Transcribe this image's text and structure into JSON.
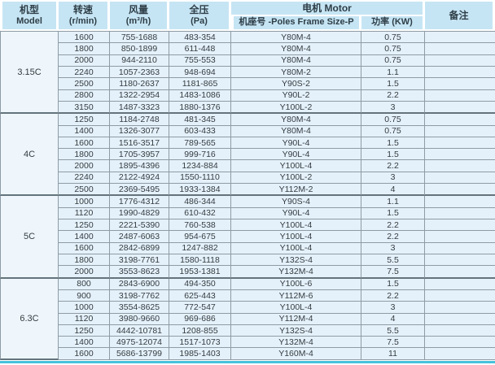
{
  "colors": {
    "page_bg": "#ffffff",
    "header_bg": "#c6e5f4",
    "header_text": "#2e3e47",
    "row_bg": "#e5f1fa",
    "model_bg": "#eef6fb",
    "body_text": "#333c41",
    "border": "#8e9ba5",
    "group_border": "#64737c",
    "accent_line": "#45c2dc"
  },
  "table": {
    "header": {
      "model": [
        "机型",
        "Model"
      ],
      "speed": [
        "转速",
        "(r/min)"
      ],
      "airflow": [
        "风量",
        "(m³/h)"
      ],
      "pressure": [
        "全压",
        "(Pa)"
      ],
      "motor": "电机 Motor",
      "frame": "机座号 -Poles Frame Size-P",
      "power": "功率 (KW)",
      "remarks": "备注"
    },
    "groups": [
      {
        "model": "3.15C",
        "rows": [
          {
            "speed": "1600",
            "airflow": "755-1688",
            "pressure": "483-354",
            "frame": "Y80M-4",
            "power": "0.75",
            "remark": ""
          },
          {
            "speed": "1800",
            "airflow": "850-1899",
            "pressure": "611-448",
            "frame": "Y80M-4",
            "power": "0.75",
            "remark": ""
          },
          {
            "speed": "2000",
            "airflow": "944-2110",
            "pressure": "755-553",
            "frame": "Y80M-4",
            "power": "0.75",
            "remark": ""
          },
          {
            "speed": "2240",
            "airflow": "1057-2363",
            "pressure": "948-694",
            "frame": "Y80M-2",
            "power": "1.1",
            "remark": ""
          },
          {
            "speed": "2500",
            "airflow": "1180-2637",
            "pressure": "1181-865",
            "frame": "Y90S-2",
            "power": "1.5",
            "remark": ""
          },
          {
            "speed": "2800",
            "airflow": "1322-2954",
            "pressure": "1483-1086",
            "frame": "Y90L-2",
            "power": "2.2",
            "remark": ""
          },
          {
            "speed": "3150",
            "airflow": "1487-3323",
            "pressure": "1880-1376",
            "frame": "Y100L-2",
            "power": "3",
            "remark": ""
          }
        ]
      },
      {
        "model": "4C",
        "rows": [
          {
            "speed": "1250",
            "airflow": "1184-2748",
            "pressure": "481-345",
            "frame": "Y80M-4",
            "power": "0.75",
            "remark": ""
          },
          {
            "speed": "1400",
            "airflow": "1326-3077",
            "pressure": "603-433",
            "frame": "Y80M-4",
            "power": "0.75",
            "remark": ""
          },
          {
            "speed": "1600",
            "airflow": "1516-3517",
            "pressure": "789-565",
            "frame": "Y90L-4",
            "power": "1.5",
            "remark": ""
          },
          {
            "speed": "1800",
            "airflow": "1705-3957",
            "pressure": "999-716",
            "frame": "Y90L-4",
            "power": "1.5",
            "remark": ""
          },
          {
            "speed": "2000",
            "airflow": "1895-4396",
            "pressure": "1234-884",
            "frame": "Y100L-4",
            "power": "2.2",
            "remark": ""
          },
          {
            "speed": "2240",
            "airflow": "2122-4924",
            "pressure": "1550-1110",
            "frame": "Y100L-2",
            "power": "3",
            "remark": ""
          },
          {
            "speed": "2500",
            "airflow": "2369-5495",
            "pressure": "1933-1384",
            "frame": "Y112M-2",
            "power": "4",
            "remark": ""
          }
        ]
      },
      {
        "model": "5C",
        "rows": [
          {
            "speed": "1000",
            "airflow": "1776-4312",
            "pressure": "486-344",
            "frame": "Y90S-4",
            "power": "1.1",
            "remark": ""
          },
          {
            "speed": "1120",
            "airflow": "1990-4829",
            "pressure": "610-432",
            "frame": "Y90L-4",
            "power": "1.5",
            "remark": ""
          },
          {
            "speed": "1250",
            "airflow": "2221-5390",
            "pressure": "760-538",
            "frame": "Y100L-4",
            "power": "2.2",
            "remark": ""
          },
          {
            "speed": "1400",
            "airflow": "2487-6063",
            "pressure": "954-675",
            "frame": "Y100L-4",
            "power": "2.2",
            "remark": ""
          },
          {
            "speed": "1600",
            "airflow": "2842-6899",
            "pressure": "1247-882",
            "frame": "Y100L-4",
            "power": "3",
            "remark": ""
          },
          {
            "speed": "1800",
            "airflow": "3198-7761",
            "pressure": "1580-1118",
            "frame": "Y132S-4",
            "power": "5.5",
            "remark": ""
          },
          {
            "speed": "2000",
            "airflow": "3553-8623",
            "pressure": "1953-1381",
            "frame": "Y132M-4",
            "power": "7.5",
            "remark": ""
          }
        ]
      },
      {
        "model": "6.3C",
        "rows": [
          {
            "speed": "800",
            "airflow": "2843-6900",
            "pressure": "494-350",
            "frame": "Y100L-6",
            "power": "1.5",
            "remark": ""
          },
          {
            "speed": "900",
            "airflow": "3198-7762",
            "pressure": "625-443",
            "frame": "Y112M-6",
            "power": "2.2",
            "remark": ""
          },
          {
            "speed": "1000",
            "airflow": "3554-8625",
            "pressure": "772-547",
            "frame": "Y100L-4",
            "power": "3",
            "remark": ""
          },
          {
            "speed": "1120",
            "airflow": "3980-9660",
            "pressure": "969-686",
            "frame": "Y112M-4",
            "power": "4",
            "remark": ""
          },
          {
            "speed": "1250",
            "airflow": "4442-10781",
            "pressure": "1208-855",
            "frame": "Y132S-4",
            "power": "5.5",
            "remark": ""
          },
          {
            "speed": "1400",
            "airflow": "4975-12074",
            "pressure": "1517-1073",
            "frame": "Y132M-4",
            "power": "7.5",
            "remark": ""
          },
          {
            "speed": "1600",
            "airflow": "5686-13799",
            "pressure": "1985-1403",
            "frame": "Y160M-4",
            "power": "11",
            "remark": ""
          }
        ]
      }
    ]
  }
}
